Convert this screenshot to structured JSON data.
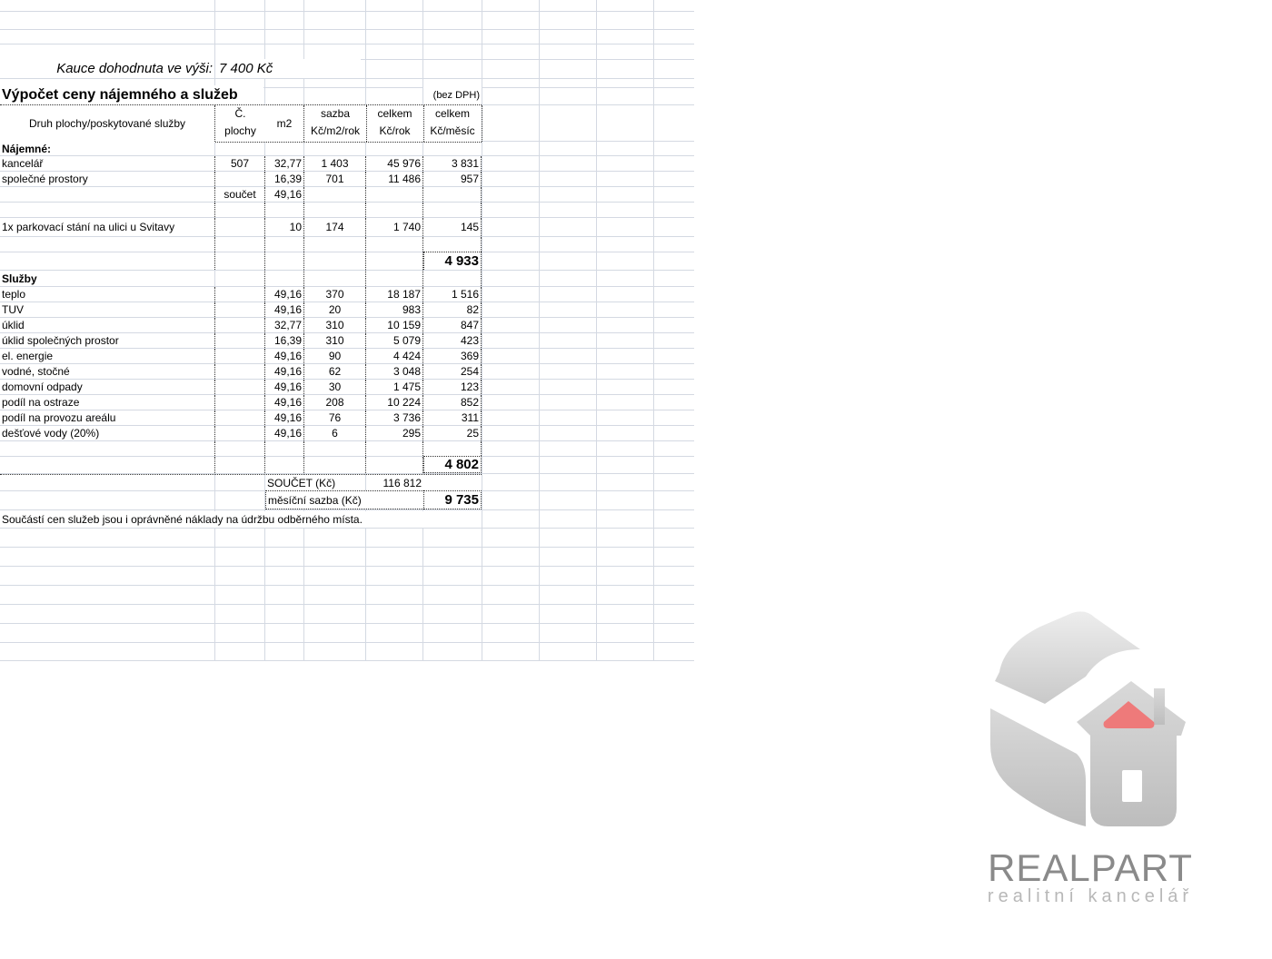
{
  "deposit": {
    "label": "Kauce dohodnuta ve výši:",
    "value": "7 400 Kč"
  },
  "title": "Výpočet ceny nájemného a služeb",
  "vat_note": "(bez DPH)",
  "headers": {
    "type": "Druh plochy/poskytované služby",
    "area_no_1": "Č.",
    "area_no_2": "plochy",
    "m2": "m2",
    "rate_1": "sazba",
    "rate_2": "Kč/m2/rok",
    "year_1": "celkem",
    "year_2": "Kč/rok",
    "month_1": "celkem",
    "month_2": "Kč/měsíc"
  },
  "rent_section": "Nájemné:",
  "rent_rows": [
    {
      "label": "kancelář",
      "area_no": "507",
      "m2": "32,77",
      "rate": "1 403",
      "year": "45 976",
      "month": "3 831"
    },
    {
      "label": "společné prostory",
      "area_no": "",
      "m2": "16,39",
      "rate": "701",
      "year": "11 486",
      "month": "957"
    },
    {
      "label": "",
      "area_no": "součet",
      "m2": "49,16",
      "rate": "",
      "year": "",
      "month": ""
    },
    {
      "label": "",
      "area_no": "",
      "m2": "",
      "rate": "",
      "year": "",
      "month": ""
    },
    {
      "label": "1x parkovací stání na ulici u Svitavy",
      "area_no": "",
      "m2": "10",
      "rate": "174",
      "year": "1 740",
      "month": "145"
    }
  ],
  "rent_total": "4 933",
  "services_section": "Služby",
  "service_rows": [
    {
      "label": "teplo",
      "m2": "49,16",
      "rate": "370",
      "year": "18 187",
      "month": "1 516"
    },
    {
      "label": "TUV",
      "m2": "49,16",
      "rate": "20",
      "year": "983",
      "month": "82"
    },
    {
      "label": "úklid",
      "m2": "32,77",
      "rate": "310",
      "year": "10 159",
      "month": "847"
    },
    {
      "label": "úklid společných prostor",
      "m2": "16,39",
      "rate": "310",
      "year": "5 079",
      "month": "423"
    },
    {
      "label": "el. energie",
      "m2": "49,16",
      "rate": "90",
      "year": "4 424",
      "month": "369"
    },
    {
      "label": "vodné, stočné",
      "m2": "49,16",
      "rate": "62",
      "year": "3 048",
      "month": "254"
    },
    {
      "label": "domovní odpady",
      "m2": "49,16",
      "rate": "30",
      "year": "1 475",
      "month": "123"
    },
    {
      "label": "podíl na ostraze",
      "m2": "49,16",
      "rate": "208",
      "year": "10 224",
      "month": "852"
    },
    {
      "label": "podíl na provozu areálu",
      "m2": "49,16",
      "rate": "76",
      "year": "3 736",
      "month": "311"
    },
    {
      "label": "dešťové vody (20%)",
      "m2": "49,16",
      "rate": "6",
      "year": "295",
      "month": "25"
    }
  ],
  "services_total": "4 802",
  "sum": {
    "label": "SOUČET (Kč)",
    "value": "116 812"
  },
  "monthly": {
    "label": "měsíční sazba (Kč)",
    "value": "9 735"
  },
  "footnote": "Součástí cen služeb jsou i oprávněné náklady na údržbu odběrného místa.",
  "logo": {
    "name": "REALPART",
    "tagline": "realitní kancelář",
    "accent": "#ee7a7a",
    "gray": "#8a8a8a"
  }
}
